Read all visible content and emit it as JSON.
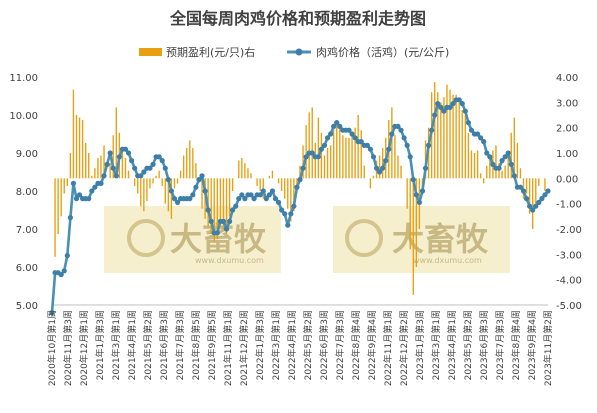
{
  "chart_data": {
    "type": "bar+line",
    "title": "全国每周肉鸡价格和预期盈利走势图",
    "legend": [
      "预期盈利(元/只)右",
      "肉鸡价格（活鸡）(元/公斤)"
    ],
    "colors": {
      "bar": "#e8a012",
      "line": "#4a8fb5",
      "marker": "#3d7fa8",
      "axis": "#bfbfbf",
      "watermark_bg": "#f3ecc4"
    },
    "left_axis": {
      "ylim": [
        5.0,
        11.0
      ],
      "ticks": [
        "5.00",
        "6.00",
        "7.00",
        "8.00",
        "9.00",
        "10.00",
        "11.00"
      ]
    },
    "right_axis": {
      "ylim": [
        -5.0,
        4.0
      ],
      "ticks": [
        "-5.00",
        "-4.00",
        "-3.00",
        "-2.00",
        "-1.00",
        "0.00",
        "1.00",
        "2.00",
        "3.00",
        "4.00"
      ]
    },
    "x_tick_labels": [
      "2020年10月第1周",
      "2020年11月第3周",
      "2020年12月第1周",
      "2021年1月第3周",
      "2021年3月第1周",
      "2021年4月第1周",
      "2021年5月第2周",
      "2021年6月第3周",
      "2021年7月第3周",
      "2021年8月第5周",
      "2021年9月第5周",
      "2021年11月第1周",
      "2021年12月第2周",
      "2022年1月第3周",
      "2022年3月第1周",
      "2022年4月第1周",
      "2022年5月第2周",
      "2022年6月第3周",
      "2022年7月第3周",
      "2022年8月第4周",
      "2022年9月第4周",
      "2022年11月第1周",
      "2022年12月第2周",
      "2023年1月第3周",
      "2023年3月第1周",
      "2023年4月第1周",
      "2023年5月第2周",
      "2023年6月第3周",
      "2023年7月第3周",
      "2023年8月第4周",
      "2023年9月第4周",
      "2023年11月第2周"
    ],
    "price": [
      4.8,
      5.85,
      5.85,
      5.8,
      5.9,
      6.3,
      7.3,
      8.2,
      7.8,
      7.9,
      7.8,
      7.8,
      7.8,
      8.0,
      8.1,
      8.2,
      8.2,
      8.4,
      8.7,
      9.0,
      8.6,
      8.4,
      8.9,
      9.1,
      9.1,
      9.0,
      8.8,
      8.6,
      8.4,
      8.4,
      8.5,
      8.6,
      8.6,
      8.7,
      8.9,
      8.9,
      8.8,
      8.6,
      8.3,
      8.0,
      7.8,
      7.7,
      7.8,
      7.8,
      7.8,
      7.8,
      7.9,
      8.1,
      8.3,
      8.4,
      8.0,
      7.5,
      7.2,
      6.9,
      6.9,
      7.2,
      7.2,
      7.0,
      7.2,
      7.5,
      7.6,
      7.8,
      7.9,
      7.8,
      7.9,
      7.9,
      7.8,
      7.9,
      7.9,
      8.0,
      7.8,
      7.9,
      8.0,
      7.8,
      7.7,
      7.5,
      7.4,
      7.1,
      7.4,
      7.6,
      8.1,
      8.3,
      8.6,
      8.9,
      9.0,
      9.0,
      8.9,
      8.9,
      9.1,
      9.2,
      9.4,
      9.5,
      9.7,
      9.8,
      9.7,
      9.6,
      9.6,
      9.6,
      9.5,
      9.4,
      9.3,
      9.3,
      9.2,
      9.2,
      9.1,
      8.9,
      8.6,
      8.5,
      8.6,
      8.8,
      9.1,
      9.5,
      9.7,
      9.7,
      9.6,
      9.4,
      9.2,
      8.9,
      8.3,
      7.9,
      7.7,
      8.0,
      8.6,
      9.2,
      9.6,
      10.0,
      10.3,
      10.2,
      10.1,
      10.2,
      10.2,
      10.3,
      10.4,
      10.4,
      10.3,
      10.1,
      9.8,
      9.6,
      9.5,
      9.5,
      9.4,
      9.3,
      9.0,
      8.9,
      8.7,
      8.6,
      8.6,
      8.8,
      8.9,
      9.0,
      8.7,
      8.4,
      8.1,
      8.1,
      8.0,
      7.8,
      7.6,
      7.5,
      7.6,
      7.7,
      7.8,
      7.9,
      8.0
    ],
    "profit": [
      0.0,
      -3.1,
      -2.2,
      -1.5,
      -0.6,
      -0.3,
      1.0,
      3.5,
      2.5,
      2.4,
      2.3,
      1.4,
      1.0,
      0.1,
      0.4,
      0.8,
      0.9,
      1.3,
      0.0,
      0.6,
      1.7,
      2.8,
      1.8,
      1.2,
      0.8,
      0.3,
      0.0,
      -0.3,
      -0.6,
      -1.1,
      -1.3,
      -0.9,
      -0.4,
      -0.2,
      0.1,
      0.3,
      -0.3,
      -1.0,
      -1.3,
      -1.6,
      -0.4,
      -0.2,
      0.3,
      0.9,
      1.2,
      1.5,
      1.2,
      0.6,
      0.0,
      -1.2,
      -1.6,
      -1.9,
      -2.2,
      -2.5,
      -2.4,
      -1.8,
      -2.0,
      -2.2,
      -1.5,
      -0.5,
      0.0,
      0.7,
      0.8,
      0.6,
      0.4,
      0.2,
      0.0,
      -0.3,
      -0.5,
      -0.8,
      0.0,
      0.1,
      0.3,
      0.0,
      -0.2,
      -0.5,
      -0.8,
      -1.2,
      -1.7,
      -1.3,
      -0.6,
      0.5,
      1.3,
      2.1,
      2.6,
      2.8,
      1.4,
      2.4,
      1.8,
      0.9,
      1.2,
      1.3,
      1.9,
      2.3,
      2.0,
      1.7,
      1.6,
      1.6,
      1.8,
      2.0,
      2.5,
      1.9,
      0.5,
      0.0,
      -0.4,
      0.1,
      0.7,
      0.9,
      1.2,
      1.6,
      2.3,
      2.8,
      1.7,
      0.9,
      0.5,
      0.0,
      -1.2,
      -2.8,
      -4.6,
      -3.5,
      -2.0,
      -0.6,
      1.5,
      2.0,
      3.4,
      3.8,
      3.4,
      3.0,
      3.2,
      3.7,
      3.5,
      3.3,
      3.3,
      3.0,
      2.7,
      2.5,
      1.8,
      1.1,
      1.0,
      1.1,
      0.2,
      -0.2,
      0.5,
      0.9,
      1.1,
      1.3,
      0.6,
      0.3,
      0.5,
      1.0,
      1.8,
      2.4,
      1.4,
      0.4,
      -0.8,
      -0.6,
      -1.4,
      -2.0,
      -1.0,
      -0.3,
      0.0,
      -0.5,
      0.0,
      0.0,
      0.0
    ]
  },
  "watermark": {
    "brand": "大畜牧",
    "url": "www.dxumu.com"
  }
}
